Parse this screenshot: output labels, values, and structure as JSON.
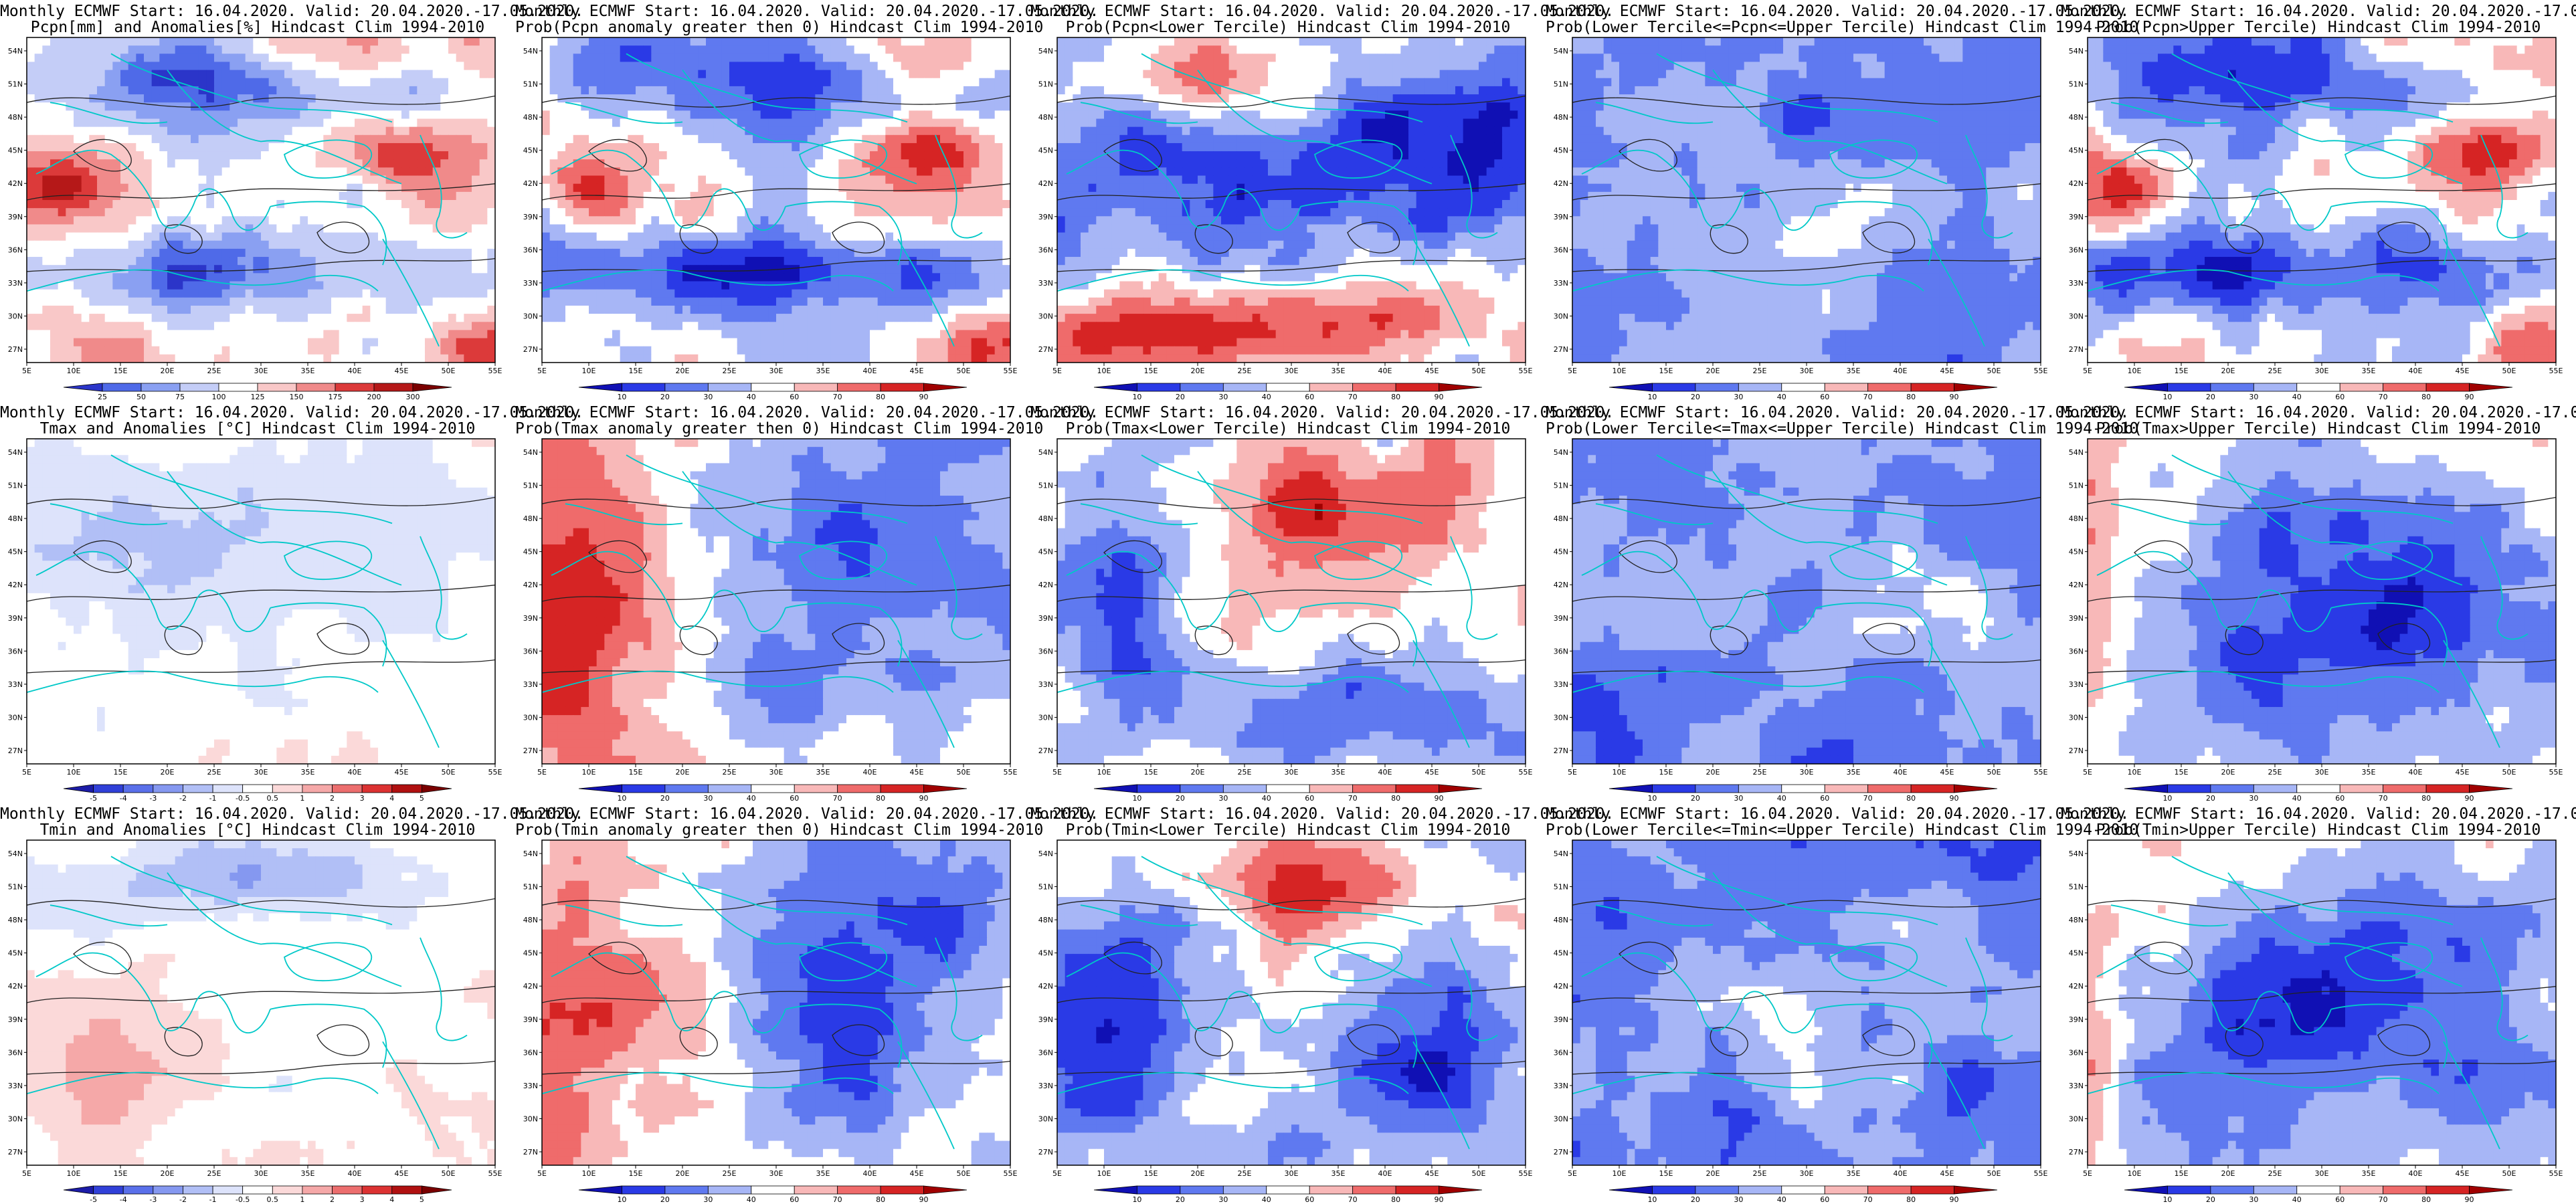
{
  "figure": {
    "header_line1": "Monthly ECMWF Start: 16.04.2020. Valid: 20.04.2020.-17.05.2020.",
    "rows": [
      {
        "variable": "Pcpn",
        "panels": [
          {
            "title2": "Pcpn[mm] and Anomalies[%] Hindcast Clim 1994-2010",
            "scheme": "anom",
            "pattern": 0
          },
          {
            "title2": "Prob(Pcpn anomaly greater then 0) Hindcast Clim 1994-2010",
            "scheme": "prob",
            "pattern": 0
          },
          {
            "title2": "Prob(Pcpn<Lower Tercile) Hindcast Clim 1994-2010",
            "scheme": "prob",
            "pattern": 1
          },
          {
            "title2": "Prob(Lower Tercile<=Pcpn<=Upper Tercile) Hindcast Clim 1994-2010",
            "scheme": "prob",
            "pattern": 2
          },
          {
            "title2": "Prob(Pcpn>Upper Tercile) Hindcast Clim 1994-2010",
            "scheme": "prob",
            "pattern": 0
          }
        ]
      },
      {
        "variable": "Tmax",
        "panels": [
          {
            "title2": "Tmax and Anomalies [°C] Hindcast Clim 1994-2010",
            "scheme": "tanom",
            "pattern": 3
          },
          {
            "title2": "Prob(Tmax anomaly greater then 0) Hindcast Clim 1994-2010",
            "scheme": "prob",
            "pattern": 4
          },
          {
            "title2": "Prob(Tmax<Lower Tercile) Hindcast Clim 1994-2010",
            "scheme": "prob",
            "pattern": 5
          },
          {
            "title2": "Prob(Lower Tercile<=Tmax<=Upper Tercile) Hindcast Clim 1994-2010",
            "scheme": "prob",
            "pattern": 2
          },
          {
            "title2": "Prob(Tmax>Upper Tercile) Hindcast Clim 1994-2010",
            "scheme": "prob",
            "pattern": 6
          }
        ]
      },
      {
        "variable": "Tmin",
        "panels": [
          {
            "title2": "Tmin and Anomalies [°C] Hindcast Clim 1994-2010",
            "scheme": "tanom",
            "pattern": 7
          },
          {
            "title2": "Prob(Tmin anomaly greater then 0) Hindcast Clim 1994-2010",
            "scheme": "prob",
            "pattern": 4
          },
          {
            "title2": "Prob(Tmin<Lower Tercile) Hindcast Clim 1994-2010",
            "scheme": "prob",
            "pattern": 8
          },
          {
            "title2": "Prob(Lower Tercile<=Tmin<=Upper Tercile) Hindcast Clim 1994-2010",
            "scheme": "prob",
            "pattern": 2
          },
          {
            "title2": "Prob(Tmin>Upper Tercile) Hindcast Clim 1994-2010",
            "scheme": "prob",
            "pattern": 6
          }
        ]
      }
    ]
  },
  "map": {
    "lon_labels": [
      "5E",
      "10E",
      "15E",
      "20E",
      "25E",
      "30E",
      "35E",
      "40E",
      "45E",
      "50E",
      "55E"
    ],
    "lat_labels": [
      "54N",
      "51N",
      "48N",
      "45N",
      "42N",
      "39N",
      "36N",
      "33N",
      "30N",
      "27N"
    ]
  },
  "legends": {
    "anom": {
      "labels": [
        "25",
        "50",
        "75",
        "100",
        "125",
        "150",
        "175",
        "200",
        "300"
      ],
      "colors": [
        "#2b35c9",
        "#4f6ae8",
        "#8aa0f2",
        "#c4cdf7",
        "#ffffff",
        "#f9c8c8",
        "#f08a8a",
        "#dc3a3a",
        "#b51818",
        "#7a0000"
      ]
    },
    "prob": {
      "labels": [
        "10",
        "20",
        "30",
        "40",
        "60",
        "70",
        "80",
        "90"
      ],
      "colors": [
        "#1010b4",
        "#2a3ae6",
        "#5f79f0",
        "#a7b6f6",
        "#ffffff",
        "#f8b8b8",
        "#ef6b6b",
        "#d62424",
        "#a00000"
      ]
    },
    "tanom": {
      "labels": [
        "-5",
        "-4",
        "-3",
        "-2",
        "-1",
        "-0.5",
        "0.5",
        "1",
        "2",
        "3",
        "4",
        "5"
      ],
      "colors": [
        "#1c1ca8",
        "#3040d8",
        "#5a70ea",
        "#8598f0",
        "#b1bff6",
        "#dde3fb",
        "#ffffff",
        "#fbd9d9",
        "#f5a8a8",
        "#ec6e6e",
        "#dc3232",
        "#b01010",
        "#7a0000"
      ]
    }
  },
  "style": {
    "coast_color": "#00c8c8",
    "contour_color": "#222222",
    "frame_color": "#000000",
    "neutral_color": "#ffffff"
  }
}
